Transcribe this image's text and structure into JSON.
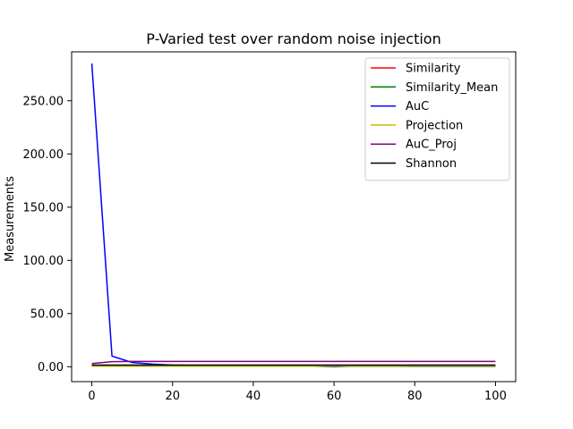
{
  "chart_data": {
    "type": "line",
    "title": "P-Varied test over random noise injection",
    "xlabel": "",
    "ylabel": "Measurements",
    "xlim": [
      -5,
      105
    ],
    "ylim": [
      -14,
      296
    ],
    "xticks": [
      0,
      20,
      40,
      60,
      80,
      100
    ],
    "xtick_labels": [
      "0",
      "20",
      "40",
      "60",
      "80",
      "100"
    ],
    "yticks": [
      0,
      50,
      100,
      150,
      200,
      250
    ],
    "ytick_labels": [
      "0.00",
      "50.00",
      "100.00",
      "150.00",
      "200.00",
      "250.00"
    ],
    "grid": false,
    "legend_position": "top-right",
    "x": [
      0,
      5,
      10,
      15,
      20,
      25,
      30,
      35,
      40,
      45,
      50,
      55,
      60,
      65,
      70,
      75,
      80,
      85,
      90,
      95,
      100
    ],
    "series": [
      {
        "name": "Similarity",
        "color": "#ff0000",
        "values": [
          1.0,
          0.8,
          0.7,
          0.6,
          0.6,
          0.5,
          0.5,
          0.5,
          0.5,
          0.5,
          0.5,
          0.5,
          0.5,
          0.5,
          0.5,
          0.5,
          0.5,
          0.5,
          0.5,
          0.5,
          0.5
        ]
      },
      {
        "name": "Similarity_Mean",
        "color": "#008000",
        "values": [
          1.0,
          1.0,
          1.0,
          1.0,
          1.0,
          1.0,
          1.0,
          1.0,
          1.0,
          1.0,
          1.0,
          1.0,
          1.0,
          1.0,
          1.0,
          1.0,
          1.0,
          1.0,
          1.0,
          1.0,
          1.0
        ]
      },
      {
        "name": "AuC",
        "color": "#0000ff",
        "values": [
          285,
          10,
          4,
          2.5,
          1.5,
          1.2,
          1.0,
          1.0,
          0.8,
          0.8,
          0.6,
          0.5,
          0,
          0.5,
          0.4,
          0.4,
          0.3,
          0.3,
          0.3,
          0.3,
          0.3
        ]
      },
      {
        "name": "Projection",
        "color": "#bfbf00",
        "values": [
          0.5,
          0.5,
          0.5,
          0.5,
          0.5,
          0.5,
          0.5,
          0.5,
          0.5,
          0.5,
          0.5,
          0.5,
          0.5,
          0.5,
          0.5,
          0.5,
          0.5,
          0.5,
          0.5,
          0.5,
          0.5
        ]
      },
      {
        "name": "AuC_Proj",
        "color": "#800080",
        "values": [
          3.0,
          4.8,
          5.0,
          5.0,
          5.0,
          5.0,
          5.0,
          5.0,
          5.0,
          5.0,
          5.0,
          5.0,
          5.0,
          5.0,
          5.0,
          5.0,
          5.0,
          5.0,
          5.0,
          5.0,
          5.0
        ]
      },
      {
        "name": "Shannon",
        "color": "#000000",
        "values": [
          1.5,
          1.5,
          1.5,
          1.5,
          1.5,
          1.5,
          1.5,
          1.5,
          1.5,
          1.5,
          1.5,
          1.5,
          1.5,
          1.5,
          1.5,
          1.5,
          1.5,
          1.5,
          1.5,
          1.5,
          1.5
        ]
      }
    ]
  }
}
